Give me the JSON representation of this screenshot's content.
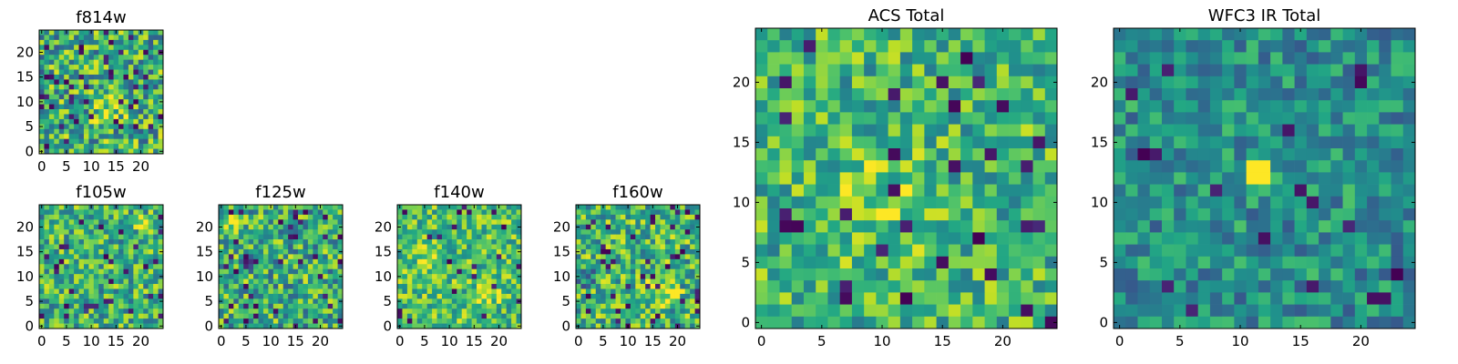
{
  "chart_data": [
    {
      "id": "f814w",
      "type": "heatmap",
      "title": "f814w",
      "size": 25,
      "xlim": [
        0,
        24
      ],
      "ylim": [
        0,
        24
      ],
      "xticks": [
        0,
        5,
        10,
        15,
        20
      ],
      "yticks": [
        0,
        5,
        10,
        15,
        20
      ],
      "seed": 814,
      "mean": 0.62,
      "spread": 0.34,
      "dark_fraction": 0.06,
      "hotspots": [
        {
          "x": 14,
          "y": 9,
          "r": 5,
          "amp": 0.25
        }
      ]
    },
    {
      "id": "f105w",
      "type": "heatmap",
      "title": "f105w",
      "size": 25,
      "xlim": [
        0,
        24
      ],
      "ylim": [
        0,
        24
      ],
      "xticks": [
        0,
        5,
        10,
        15,
        20
      ],
      "yticks": [
        0,
        5,
        10,
        15,
        20
      ],
      "seed": 105,
      "mean": 0.64,
      "spread": 0.3,
      "dark_fraction": 0.04,
      "hotspots": [
        {
          "x": 9,
          "y": 4,
          "r": 1,
          "amp": -0.7
        },
        {
          "x": 20,
          "y": 21,
          "r": 2,
          "amp": 0.3
        }
      ]
    },
    {
      "id": "f125w",
      "type": "heatmap",
      "title": "f125w",
      "size": 25,
      "xlim": [
        0,
        24
      ],
      "ylim": [
        0,
        24
      ],
      "xticks": [
        0,
        5,
        10,
        15,
        20
      ],
      "yticks": [
        0,
        5,
        10,
        15,
        20
      ],
      "seed": 125,
      "mean": 0.62,
      "spread": 0.32,
      "dark_fraction": 0.05,
      "hotspots": [
        {
          "x": 5,
          "y": 13,
          "r": 2,
          "amp": -0.4
        },
        {
          "x": 3,
          "y": 22,
          "r": 3,
          "amp": 0.3
        }
      ]
    },
    {
      "id": "f140w",
      "type": "heatmap",
      "title": "f140w",
      "size": 25,
      "xlim": [
        0,
        24
      ],
      "ylim": [
        0,
        24
      ],
      "xticks": [
        0,
        5,
        10,
        15,
        20
      ],
      "yticks": [
        0,
        5,
        10,
        15,
        20
      ],
      "seed": 140,
      "mean": 0.7,
      "spread": 0.26,
      "dark_fraction": 0.03,
      "hotspots": [
        {
          "x": 6,
          "y": 14,
          "r": 3,
          "amp": 0.25
        },
        {
          "x": 18,
          "y": 7,
          "r": 3,
          "amp": 0.25
        }
      ]
    },
    {
      "id": "f160w",
      "type": "heatmap",
      "title": "f160w",
      "size": 25,
      "xlim": [
        0,
        24
      ],
      "ylim": [
        0,
        24
      ],
      "xticks": [
        0,
        5,
        10,
        15,
        20
      ],
      "yticks": [
        0,
        5,
        10,
        15,
        20
      ],
      "seed": 160,
      "mean": 0.66,
      "spread": 0.3,
      "dark_fraction": 0.06,
      "hotspots": [
        {
          "x": 17,
          "y": 7,
          "r": 4,
          "amp": 0.35
        },
        {
          "x": 2,
          "y": 10,
          "r": 3,
          "amp": -0.3
        }
      ]
    },
    {
      "id": "acs_total",
      "type": "heatmap",
      "title": "ACS Total",
      "size": 25,
      "xlim": [
        0,
        24
      ],
      "ylim": [
        0,
        24
      ],
      "xticks": [
        0,
        5,
        10,
        15,
        20
      ],
      "yticks": [
        0,
        5,
        10,
        15,
        20
      ],
      "seed": 7,
      "mean": 0.66,
      "spread": 0.26,
      "dark_fraction": 0.035,
      "hotspots": [
        {
          "x": 10,
          "y": 10,
          "r": 6,
          "amp": 0.15
        }
      ]
    },
    {
      "id": "wfc3_ir_total",
      "type": "heatmap",
      "title": "WFC3 IR Total",
      "size": 25,
      "xlim": [
        0,
        24
      ],
      "ylim": [
        0,
        24
      ],
      "xticks": [
        0,
        5,
        10,
        15,
        20
      ],
      "yticks": [
        0,
        5,
        10,
        15,
        20
      ],
      "seed": 33,
      "mean": 0.5,
      "spread": 0.22,
      "dark_fraction": 0.025,
      "hotspots": [
        {
          "x": 11.5,
          "y": 12.5,
          "r": 1.2,
          "amp": 0.8
        }
      ]
    }
  ]
}
